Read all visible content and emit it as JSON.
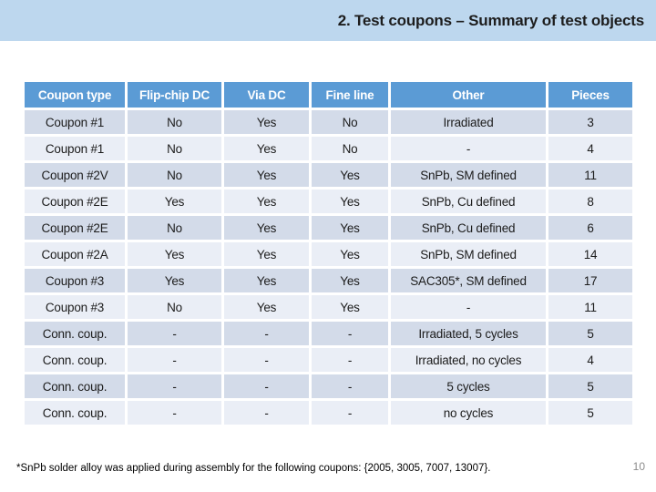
{
  "slide": {
    "title": "2. Test coupons – Summary of test objects",
    "footnote": "*SnPb solder alloy was applied during assembly for the following coupons: {2005, 3005, 7007, 13007}.",
    "page_number": "10"
  },
  "table": {
    "headers": [
      "Coupon type",
      "Flip-chip DC",
      "Via DC",
      "Fine line",
      "Other",
      "Pieces"
    ],
    "rows": [
      [
        "Coupon #1",
        "No",
        "Yes",
        "No",
        "Irradiated",
        "3"
      ],
      [
        "Coupon #1",
        "No",
        "Yes",
        "No",
        "-",
        "4"
      ],
      [
        "Coupon #2V",
        "No",
        "Yes",
        "Yes",
        "SnPb, SM defined",
        "11"
      ],
      [
        "Coupon #2E",
        "Yes",
        "Yes",
        "Yes",
        "SnPb, Cu defined",
        "8"
      ],
      [
        "Coupon #2E",
        "No",
        "Yes",
        "Yes",
        "SnPb, Cu defined",
        "6"
      ],
      [
        "Coupon #2A",
        "Yes",
        "Yes",
        "Yes",
        "SnPb, SM defined",
        "14"
      ],
      [
        "Coupon #3",
        "Yes",
        "Yes",
        "Yes",
        "SAC305*, SM defined",
        "17"
      ],
      [
        "Coupon #3",
        "No",
        "Yes",
        "Yes",
        "-",
        "11"
      ],
      [
        "Conn. coup.",
        "-",
        "-",
        "-",
        "Irradiated, 5 cycles",
        "5"
      ],
      [
        "Conn. coup.",
        "-",
        "-",
        "-",
        "Irradiated, no cycles",
        "4"
      ],
      [
        "Conn. coup.",
        "-",
        "-",
        "-",
        "5 cycles",
        "5"
      ],
      [
        "Conn. coup.",
        "-",
        "-",
        "-",
        "no cycles",
        "5"
      ]
    ]
  },
  "colors": {
    "banner_bg": "#BDD7EE",
    "header_bg": "#5B9BD5",
    "row_dark": "#D3DBE9",
    "row_light": "#EAEEF6",
    "header_text": "#FFFFFF",
    "body_text": "#1C1C1C",
    "page_number": "#8C8C8C"
  }
}
